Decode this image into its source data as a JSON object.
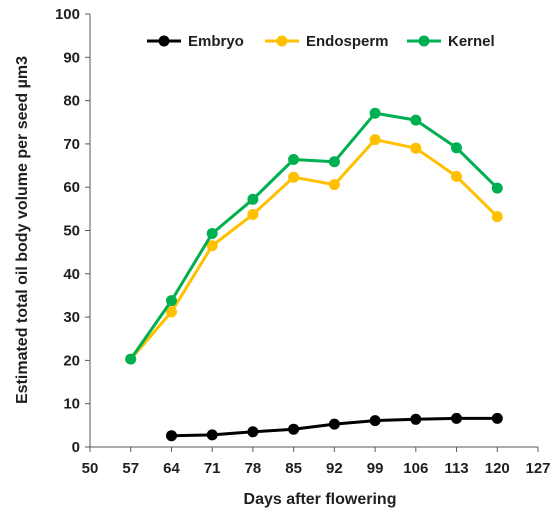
{
  "chart_data": {
    "type": "line",
    "title": "",
    "xlabel": "Days after flowering",
    "ylabel": "Estimated total oil body volume per seed µm3",
    "xlim": [
      50,
      127
    ],
    "ylim": [
      0,
      100
    ],
    "x_ticks": [
      "50",
      "57",
      "64",
      "71",
      "78",
      "85",
      "92",
      "99",
      "106",
      "113",
      "120",
      "127"
    ],
    "y_ticks": [
      "0",
      "10",
      "20",
      "30",
      "40",
      "50",
      "60",
      "70",
      "80",
      "90",
      "100"
    ],
    "x": [
      57,
      64,
      71,
      78,
      85,
      92,
      99,
      106,
      113,
      120
    ],
    "grid": false,
    "legend_position": "top",
    "series": [
      {
        "name": "Embryo",
        "color": "#000000",
        "values": [
          null,
          2.6,
          2.8,
          3.5,
          4.1,
          5.3,
          6.1,
          6.4,
          6.6,
          6.6
        ]
      },
      {
        "name": "Endosperm",
        "color": "#FFC000",
        "values": [
          20.3,
          31.2,
          46.5,
          53.7,
          62.3,
          60.6,
          71.0,
          69.0,
          62.5,
          53.2
        ]
      },
      {
        "name": "Kernel",
        "color": "#00B050",
        "values": [
          20.3,
          33.8,
          49.3,
          57.2,
          66.4,
          65.9,
          77.1,
          75.5,
          69.1,
          59.8
        ]
      }
    ]
  }
}
